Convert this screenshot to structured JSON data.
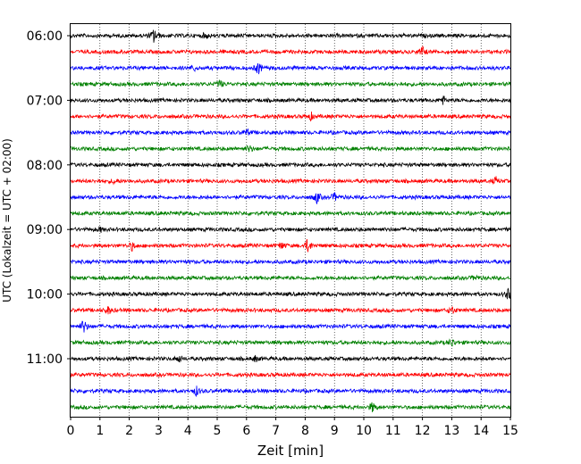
{
  "chart_data": {
    "type": "line",
    "subtype": "seismic-helicorder",
    "title": "",
    "xlabel": "Zeit  [min]",
    "ylabel": "UTC (Lokalzeit = UTC + 02:00)",
    "xlim": [
      0,
      15
    ],
    "x_ticks": [
      "0",
      "1",
      "2",
      "3",
      "4",
      "5",
      "6",
      "7",
      "8",
      "9",
      "10",
      "11",
      "12",
      "13",
      "14",
      "15"
    ],
    "y_ticks": [
      "06:00",
      "07:00",
      "08:00",
      "09:00",
      "10:00",
      "11:00"
    ],
    "rows_per_hour": 4,
    "row_start_times": [
      "06:00",
      "06:15",
      "06:30",
      "06:45",
      "07:00",
      "07:15",
      "07:30",
      "07:45",
      "08:00",
      "08:15",
      "08:30",
      "08:45",
      "09:00",
      "09:15",
      "09:30",
      "09:45",
      "10:00",
      "10:15",
      "10:30",
      "10:45",
      "11:00",
      "11:15",
      "11:30",
      "11:45"
    ],
    "row_colors": [
      "#000000",
      "#ff0000",
      "#0000ff",
      "#008000"
    ],
    "grid": "vertical dotted at each minute",
    "events": [
      {
        "row": 0,
        "minute": 2.85,
        "amplitude": 1.0
      },
      {
        "row": 0,
        "minute": 4.6,
        "amplitude": 0.35
      },
      {
        "row": 1,
        "minute": 12.0,
        "amplitude": 0.6
      },
      {
        "row": 2,
        "minute": 6.4,
        "amplitude": 0.8
      },
      {
        "row": 2,
        "minute": 4.2,
        "amplitude": 0.35
      },
      {
        "row": 3,
        "minute": 5.1,
        "amplitude": 0.5
      },
      {
        "row": 4,
        "minute": 12.7,
        "amplitude": 0.55
      },
      {
        "row": 5,
        "minute": 8.2,
        "amplitude": 0.45
      },
      {
        "row": 6,
        "minute": 6.0,
        "amplitude": 0.4
      },
      {
        "row": 7,
        "minute": 6.1,
        "amplitude": 0.45
      },
      {
        "row": 9,
        "minute": 14.5,
        "amplitude": 0.45
      },
      {
        "row": 9,
        "minute": 1.5,
        "amplitude": 0.35
      },
      {
        "row": 10,
        "minute": 8.4,
        "amplitude": 0.75
      },
      {
        "row": 10,
        "minute": 9.0,
        "amplitude": 0.5
      },
      {
        "row": 12,
        "minute": 1.0,
        "amplitude": 0.3
      },
      {
        "row": 13,
        "minute": 8.1,
        "amplitude": 1.0
      },
      {
        "row": 13,
        "minute": 2.1,
        "amplitude": 0.55
      },
      {
        "row": 13,
        "minute": 7.2,
        "amplitude": 0.45
      },
      {
        "row": 15,
        "minute": 13.8,
        "amplitude": 0.3
      },
      {
        "row": 16,
        "minute": 14.95,
        "amplitude": 0.9
      },
      {
        "row": 17,
        "minute": 1.3,
        "amplitude": 0.5
      },
      {
        "row": 17,
        "minute": 13.0,
        "amplitude": 0.55
      },
      {
        "row": 18,
        "minute": 0.45,
        "amplitude": 0.95
      },
      {
        "row": 19,
        "minute": 13.0,
        "amplitude": 0.55
      },
      {
        "row": 20,
        "minute": 3.7,
        "amplitude": 0.45
      },
      {
        "row": 20,
        "minute": 6.3,
        "amplitude": 0.35
      },
      {
        "row": 22,
        "minute": 4.3,
        "amplitude": 0.6
      },
      {
        "row": 23,
        "minute": 10.3,
        "amplitude": 0.65
      }
    ]
  }
}
